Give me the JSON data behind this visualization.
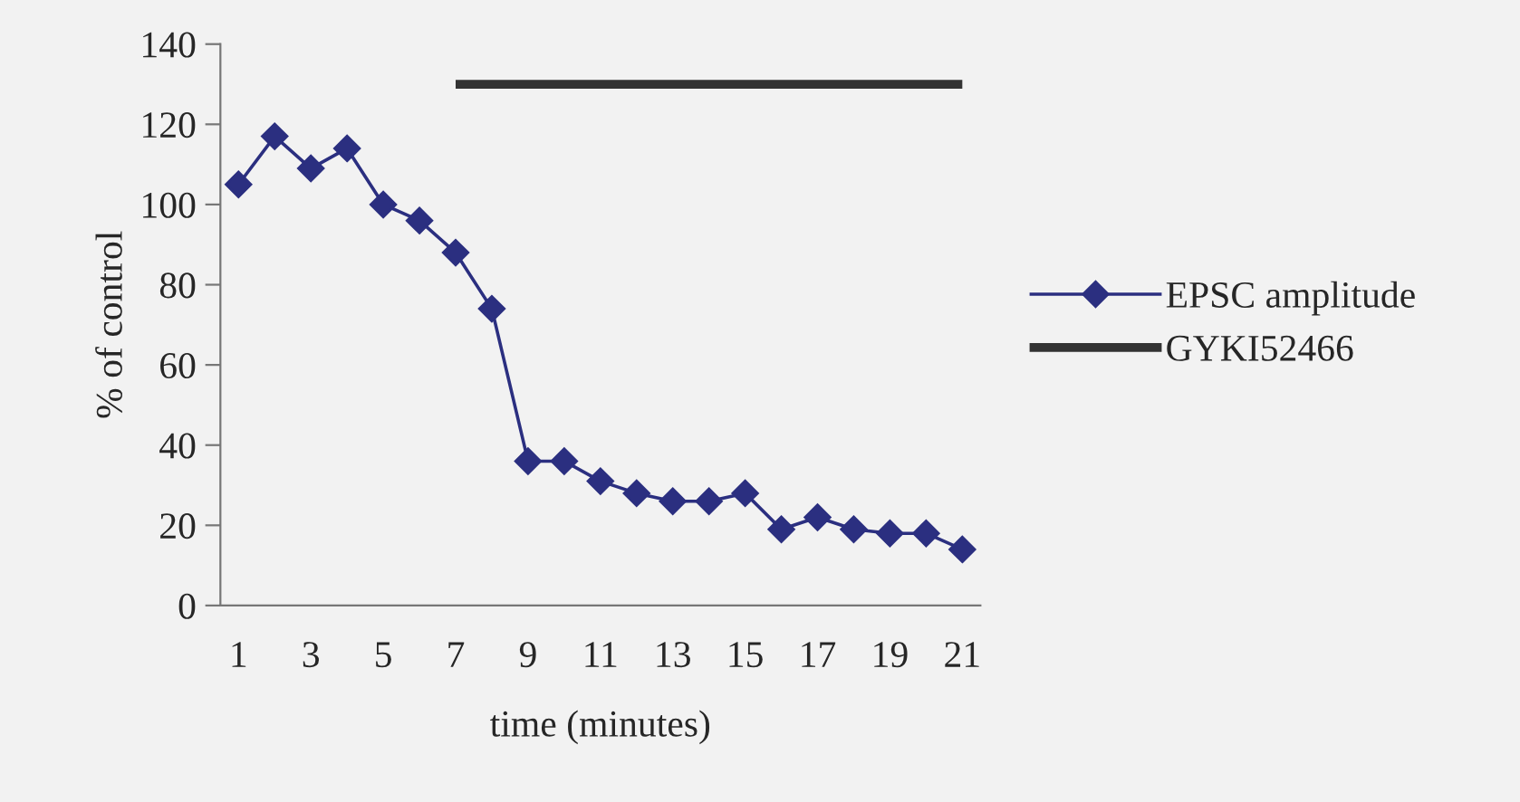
{
  "chart_data": {
    "type": "line",
    "xlabel": "time (minutes)",
    "ylabel": "% of control",
    "categories": [
      "1",
      null,
      "3",
      null,
      "5",
      null,
      "7",
      null,
      "9",
      null,
      "11",
      null,
      "13",
      null,
      "15",
      null,
      "17",
      null,
      "19",
      null,
      "21"
    ],
    "series": [
      {
        "name": "EPSC amplitude",
        "color": "#2b2f80",
        "marker": "diamond",
        "values": [
          105,
          117,
          109,
          114,
          100,
          96,
          88,
          74,
          36,
          36,
          31,
          28,
          26,
          26,
          28,
          19,
          22,
          19,
          18,
          18,
          14
        ]
      },
      {
        "name": "GYKI52466",
        "color": "#333333",
        "marker": "none",
        "values": [
          null,
          null,
          null,
          null,
          null,
          null,
          130,
          130,
          130,
          130,
          130,
          130,
          130,
          130,
          130,
          130,
          130,
          130,
          130,
          130,
          130
        ]
      }
    ],
    "ylim": [
      0,
      140
    ],
    "yticks": [
      0,
      20,
      40,
      60,
      80,
      100,
      120,
      140
    ],
    "grid": false,
    "legend": "right",
    "line_style": "solid"
  }
}
